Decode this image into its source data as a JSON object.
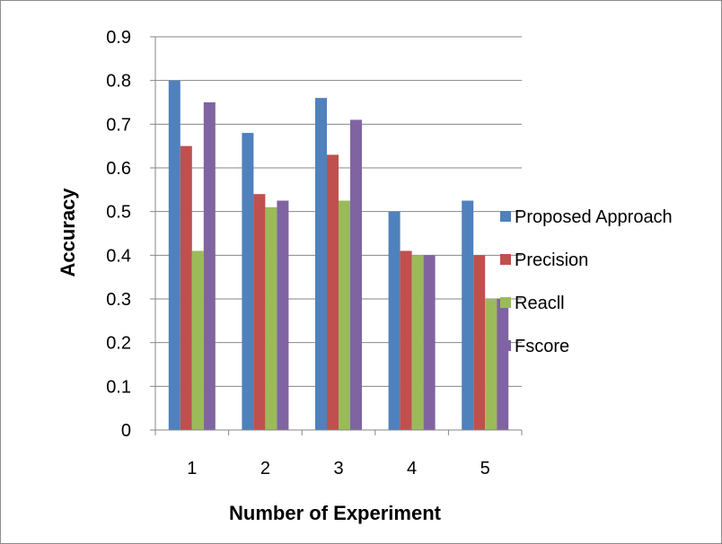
{
  "chart_data": {
    "type": "bar",
    "title": "",
    "xlabel": "Number of Experiment",
    "ylabel": "Accuracy",
    "categories": [
      "1",
      "2",
      "3",
      "4",
      "5"
    ],
    "ylim": [
      0,
      0.9
    ],
    "yticks": [
      "0",
      "0.1",
      "0.2",
      "0.3",
      "0.4",
      "0.5",
      "0.6",
      "0.7",
      "0.8",
      "0.9"
    ],
    "grid": true,
    "legend_position": "right",
    "series": [
      {
        "name": "Proposed Approach",
        "color": "#4f81bd",
        "values": [
          0.8,
          0.68,
          0.76,
          0.5,
          0.525
        ]
      },
      {
        "name": "Precision",
        "color": "#c0504d",
        "values": [
          0.65,
          0.54,
          0.63,
          0.41,
          0.4
        ]
      },
      {
        "name": "Reacll",
        "color": "#9bbb59",
        "values": [
          0.41,
          0.51,
          0.525,
          0.4,
          0.3
        ]
      },
      {
        "name": "Fscore",
        "color": "#8064a2",
        "values": [
          0.75,
          0.525,
          0.71,
          0.4,
          0.3
        ]
      }
    ]
  }
}
